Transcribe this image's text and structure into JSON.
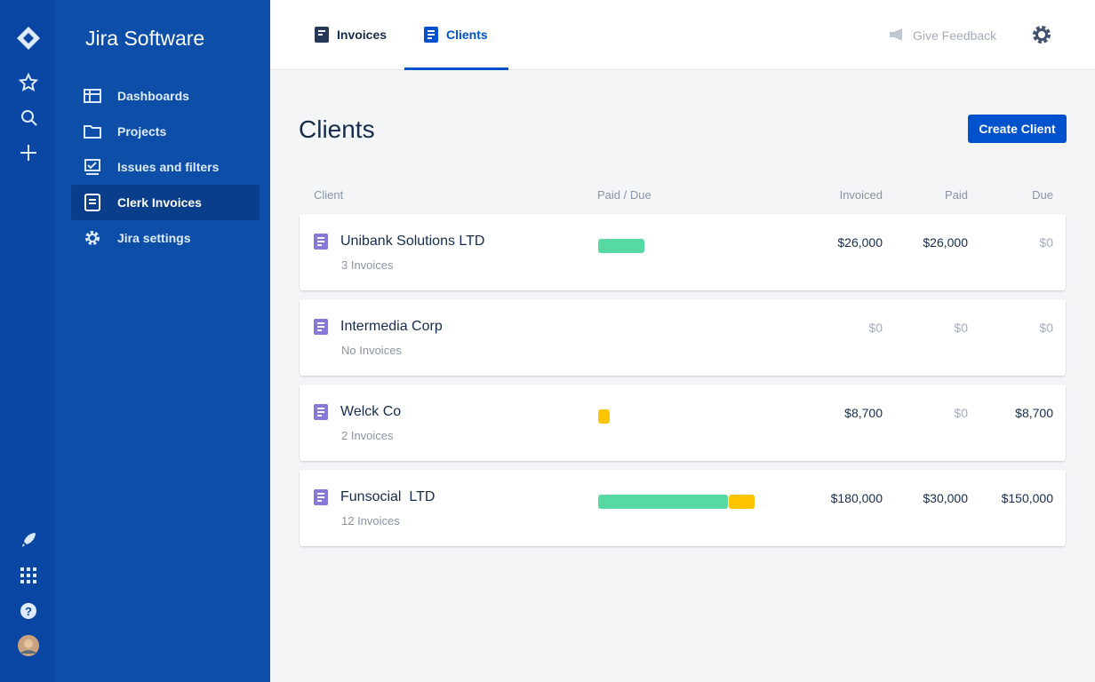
{
  "product": "Jira Software",
  "sidebar": {
    "items": [
      "Dashboards",
      "Projects",
      "Issues and filters",
      "Clerk Invoices",
      "Jira settings"
    ]
  },
  "tabs": [
    "Invoices",
    "Clients"
  ],
  "feedback": "Give Feedback",
  "page_title": "Clients",
  "create_button": "Create Client",
  "table": {
    "columns": [
      "Client",
      "Paid / Due",
      "Invoiced",
      "Paid",
      "Due"
    ],
    "rows": [
      {
        "name": "Unibank Solutions LTD",
        "invoices": "3 Invoices",
        "invoiced": "$26,000",
        "paid": "$26,000",
        "due": "$0"
      },
      {
        "name": "Intermedia Corp",
        "invoices": "No Invoices",
        "invoiced": "$0",
        "paid": "$0",
        "due": "$0"
      },
      {
        "name": "Welck Co",
        "invoices": "2 Invoices",
        "invoiced": "$8,700",
        "paid": "$0",
        "due": "$8,700"
      },
      {
        "name": "Funsocial  LTD",
        "invoices": "12 Invoices",
        "invoiced": "$180,000",
        "paid": "$30,000",
        "due": "$150,000"
      }
    ]
  }
}
